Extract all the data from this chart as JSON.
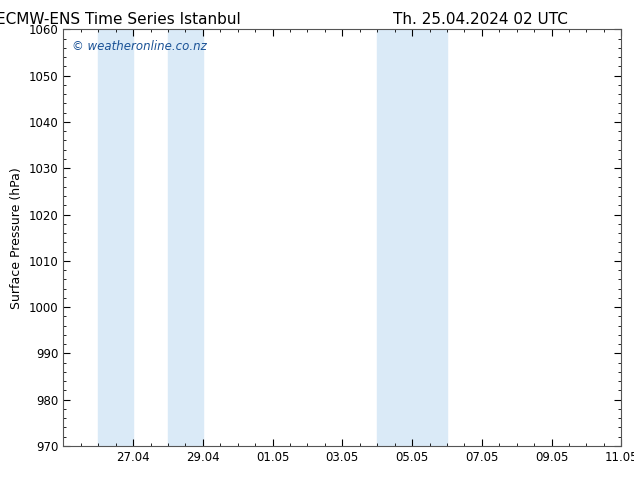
{
  "title_left": "ECMW-ENS Time Series Istanbul",
  "title_right": "Th. 25.04.2024 02 UTC",
  "ylabel": "Surface Pressure (hPa)",
  "ylim": [
    970,
    1060
  ],
  "yticks": [
    970,
    980,
    990,
    1000,
    1010,
    1020,
    1030,
    1040,
    1050,
    1060
  ],
  "xlim_start": 0,
  "xlim_end": 16,
  "xtick_labels": [
    "27.04",
    "29.04",
    "01.05",
    "03.05",
    "05.05",
    "07.05",
    "09.05",
    "11.05"
  ],
  "xtick_positions": [
    2,
    4,
    6,
    8,
    10,
    12,
    14,
    16
  ],
  "shaded_bands": [
    {
      "x_start": 1.0,
      "x_end": 2.0
    },
    {
      "x_start": 3.0,
      "x_end": 4.0
    },
    {
      "x_start": 9.0,
      "x_end": 10.0
    },
    {
      "x_start": 10.0,
      "x_end": 11.0
    }
  ],
  "shade_color": "#daeaf7",
  "watermark_text": "© weatheronline.co.nz",
  "watermark_color": "#1a5296",
  "background_color": "#ffffff",
  "plot_bg_color": "#ffffff",
  "border_color": "#555555",
  "title_fontsize": 11,
  "label_fontsize": 9,
  "tick_fontsize": 8.5,
  "watermark_fontsize": 8.5
}
